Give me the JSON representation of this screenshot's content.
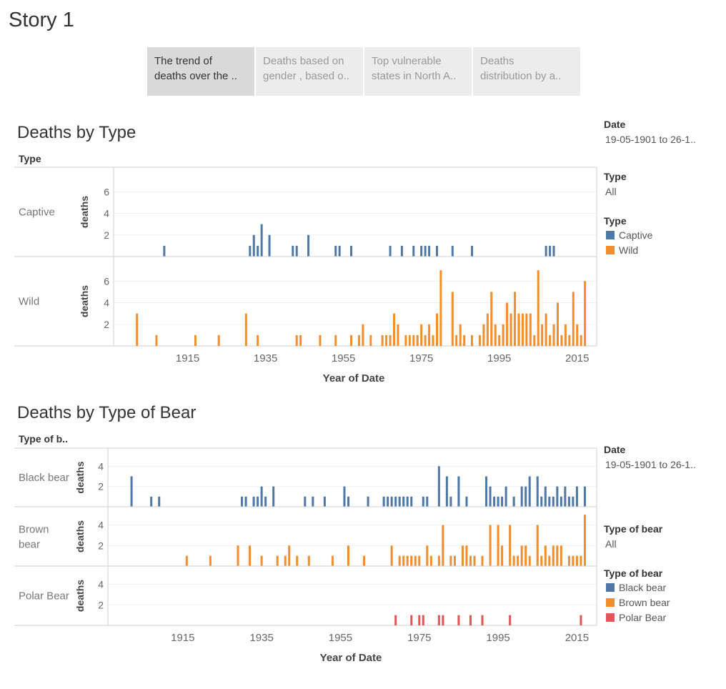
{
  "story": {
    "title": "Story 1"
  },
  "tabs": [
    {
      "line1": "The trend of",
      "line2": "deaths over the ..",
      "active": true
    },
    {
      "line1": "Deaths based on",
      "line2": "gender , based o..",
      "active": false
    },
    {
      "line1": "Top vulnerable",
      "line2": "states in North A..",
      "active": false
    },
    {
      "line1": "Deaths",
      "line2": "distribution by a..",
      "active": false
    }
  ],
  "sheet1": {
    "title": "Deaths by Type",
    "field_header": "Type",
    "filters": {
      "date_label": "Date",
      "date_value": "19-05-1901 to 26-1..",
      "type_label": "Type",
      "type_value": "All"
    },
    "legend": {
      "title": "Type",
      "items": [
        {
          "label": "Captive",
          "color": "#4e79a7"
        },
        {
          "label": "Wild",
          "color": "#f28e2b"
        }
      ]
    }
  },
  "sheet2": {
    "title": "Deaths by Type of Bear",
    "field_header": "Type of b..",
    "filters": {
      "date_label": "Date",
      "date_value": "19-05-1901 to 26-1..",
      "type_label": "Type of bear",
      "type_value": "All"
    },
    "legend": {
      "title": "Type of bear",
      "items": [
        {
          "label": "Black bear",
          "color": "#4e79a7"
        },
        {
          "label": "Brown bear",
          "color": "#f28e2b"
        },
        {
          "label": "Polar Bear",
          "color": "#e15759"
        }
      ]
    }
  },
  "chart_data": [
    {
      "type": "bar",
      "title": "Deaths by Type",
      "xlabel": "Year of Date",
      "ylabel": "deaths",
      "xlim": [
        1896,
        2020
      ],
      "x_ticks": [
        1915,
        1935,
        1955,
        1975,
        1995,
        2015
      ],
      "panels": [
        {
          "name": "Captive",
          "color": "#4e79a7",
          "ylim": [
            0,
            8
          ],
          "y_ticks": [
            2,
            4,
            6
          ],
          "points": [
            [
              1909,
              1
            ],
            [
              1931,
              1
            ],
            [
              1932,
              2
            ],
            [
              1933,
              1
            ],
            [
              1934,
              3
            ],
            [
              1936,
              2
            ],
            [
              1942,
              1
            ],
            [
              1943,
              1
            ],
            [
              1946,
              2
            ],
            [
              1953,
              1
            ],
            [
              1954,
              1
            ],
            [
              1957,
              1
            ],
            [
              1967,
              1
            ],
            [
              1970,
              1
            ],
            [
              1973,
              1
            ],
            [
              1975,
              1
            ],
            [
              1976,
              1
            ],
            [
              1977,
              1
            ],
            [
              1979,
              1
            ],
            [
              1983,
              1
            ],
            [
              1988,
              1
            ],
            [
              2007,
              1
            ],
            [
              2008,
              1
            ],
            [
              2009,
              1
            ]
          ]
        },
        {
          "name": "Wild",
          "color": "#f28e2b",
          "ylim": [
            0,
            8
          ],
          "y_ticks": [
            2,
            4,
            6
          ],
          "points": [
            [
              1902,
              3
            ],
            [
              1907,
              1
            ],
            [
              1917,
              1
            ],
            [
              1923,
              1
            ],
            [
              1930,
              3
            ],
            [
              1933,
              1
            ],
            [
              1943,
              1
            ],
            [
              1944,
              1
            ],
            [
              1949,
              1
            ],
            [
              1953,
              1
            ],
            [
              1957,
              1
            ],
            [
              1959,
              1
            ],
            [
              1960,
              2
            ],
            [
              1962,
              1
            ],
            [
              1965,
              1
            ],
            [
              1966,
              1
            ],
            [
              1967,
              1
            ],
            [
              1968,
              3
            ],
            [
              1969,
              2
            ],
            [
              1971,
              1
            ],
            [
              1972,
              1
            ],
            [
              1973,
              1
            ],
            [
              1974,
              1
            ],
            [
              1975,
              2
            ],
            [
              1976,
              1
            ],
            [
              1977,
              2
            ],
            [
              1978,
              1
            ],
            [
              1979,
              3
            ],
            [
              1980,
              7
            ],
            [
              1983,
              5
            ],
            [
              1984,
              1
            ],
            [
              1985,
              2
            ],
            [
              1986,
              1
            ],
            [
              1988,
              1
            ],
            [
              1990,
              1
            ],
            [
              1991,
              2
            ],
            [
              1992,
              3
            ],
            [
              1993,
              5
            ],
            [
              1994,
              2
            ],
            [
              1995,
              1
            ],
            [
              1996,
              2
            ],
            [
              1997,
              4
            ],
            [
              1998,
              3
            ],
            [
              1999,
              5
            ],
            [
              2000,
              3
            ],
            [
              2001,
              3
            ],
            [
              2002,
              3
            ],
            [
              2003,
              3
            ],
            [
              2004,
              1
            ],
            [
              2005,
              7
            ],
            [
              2006,
              2
            ],
            [
              2007,
              3
            ],
            [
              2008,
              1
            ],
            [
              2009,
              2
            ],
            [
              2010,
              4
            ],
            [
              2011,
              1
            ],
            [
              2012,
              2
            ],
            [
              2013,
              1
            ],
            [
              2014,
              5
            ],
            [
              2015,
              2
            ],
            [
              2016,
              1
            ],
            [
              2017,
              6
            ]
          ]
        }
      ]
    },
    {
      "type": "bar",
      "title": "Deaths by Type of Bear",
      "xlabel": "Year of Date",
      "ylabel": "deaths",
      "xlim": [
        1896,
        2020
      ],
      "x_ticks": [
        1915,
        1935,
        1955,
        1975,
        1995,
        2015
      ],
      "panels": [
        {
          "name": "Black bear",
          "color": "#4e79a7",
          "ylim": [
            0,
            5.5
          ],
          "y_ticks": [
            2,
            4
          ],
          "points": [
            [
              1902,
              3
            ],
            [
              1907,
              1
            ],
            [
              1909,
              1
            ],
            [
              1930,
              1
            ],
            [
              1931,
              1
            ],
            [
              1933,
              1
            ],
            [
              1934,
              1
            ],
            [
              1935,
              2
            ],
            [
              1936,
              1
            ],
            [
              1938,
              2
            ],
            [
              1946,
              1
            ],
            [
              1948,
              1
            ],
            [
              1951,
              1
            ],
            [
              1956,
              2
            ],
            [
              1957,
              1
            ],
            [
              1962,
              1
            ],
            [
              1966,
              1
            ],
            [
              1967,
              1
            ],
            [
              1968,
              1
            ],
            [
              1969,
              1
            ],
            [
              1970,
              1
            ],
            [
              1971,
              1
            ],
            [
              1972,
              1
            ],
            [
              1973,
              1
            ],
            [
              1976,
              1
            ],
            [
              1977,
              1
            ],
            [
              1980,
              4
            ],
            [
              1982,
              3
            ],
            [
              1983,
              1
            ],
            [
              1985,
              3
            ],
            [
              1987,
              1
            ],
            [
              1992,
              3
            ],
            [
              1993,
              2
            ],
            [
              1994,
              1
            ],
            [
              1995,
              1
            ],
            [
              1996,
              1
            ],
            [
              1997,
              2
            ],
            [
              1999,
              1
            ],
            [
              2001,
              2
            ],
            [
              2002,
              2
            ],
            [
              2003,
              3
            ],
            [
              2005,
              3
            ],
            [
              2006,
              1
            ],
            [
              2007,
              2
            ],
            [
              2008,
              1
            ],
            [
              2009,
              1
            ],
            [
              2010,
              2
            ],
            [
              2011,
              1
            ],
            [
              2012,
              2
            ],
            [
              2013,
              1
            ],
            [
              2014,
              1
            ],
            [
              2015,
              2
            ],
            [
              2017,
              2
            ]
          ]
        },
        {
          "name": "Brown bear",
          "color": "#f28e2b",
          "ylim": [
            0,
            5.5
          ],
          "y_ticks": [
            2,
            4
          ],
          "points": [
            [
              1916,
              1
            ],
            [
              1922,
              1
            ],
            [
              1929,
              2
            ],
            [
              1932,
              2
            ],
            [
              1935,
              1
            ],
            [
              1939,
              1
            ],
            [
              1941,
              1
            ],
            [
              1942,
              2
            ],
            [
              1944,
              1
            ],
            [
              1947,
              1
            ],
            [
              1953,
              1
            ],
            [
              1957,
              2
            ],
            [
              1961,
              1
            ],
            [
              1968,
              2
            ],
            [
              1970,
              1
            ],
            [
              1971,
              1
            ],
            [
              1972,
              1
            ],
            [
              1973,
              1
            ],
            [
              1974,
              1
            ],
            [
              1975,
              1
            ],
            [
              1977,
              2
            ],
            [
              1978,
              1
            ],
            [
              1980,
              1
            ],
            [
              1981,
              4
            ],
            [
              1983,
              1
            ],
            [
              1984,
              1
            ],
            [
              1986,
              2
            ],
            [
              1987,
              2
            ],
            [
              1988,
              1
            ],
            [
              1989,
              1
            ],
            [
              1991,
              1
            ],
            [
              1993,
              4
            ],
            [
              1995,
              4
            ],
            [
              1996,
              2
            ],
            [
              1998,
              4
            ],
            [
              1999,
              1
            ],
            [
              2000,
              1
            ],
            [
              2001,
              2
            ],
            [
              2002,
              2
            ],
            [
              2003,
              1
            ],
            [
              2005,
              4
            ],
            [
              2006,
              1
            ],
            [
              2007,
              2
            ],
            [
              2008,
              1
            ],
            [
              2009,
              2
            ],
            [
              2010,
              2
            ],
            [
              2011,
              2
            ],
            [
              2013,
              1
            ],
            [
              2014,
              1
            ],
            [
              2015,
              1
            ],
            [
              2016,
              1
            ],
            [
              2017,
              5
            ]
          ]
        },
        {
          "name": "Polar Bear",
          "color": "#e15759",
          "ylim": [
            0,
            5.5
          ],
          "y_ticks": [
            2,
            4
          ],
          "points": [
            [
              1969,
              1
            ],
            [
              1973,
              1
            ],
            [
              1975,
              1
            ],
            [
              1976,
              1
            ],
            [
              1980,
              1
            ],
            [
              1981,
              1
            ],
            [
              1985,
              1
            ],
            [
              1988,
              1
            ],
            [
              1991,
              1
            ],
            [
              1998,
              1
            ],
            [
              2016,
              1
            ]
          ]
        }
      ]
    }
  ]
}
